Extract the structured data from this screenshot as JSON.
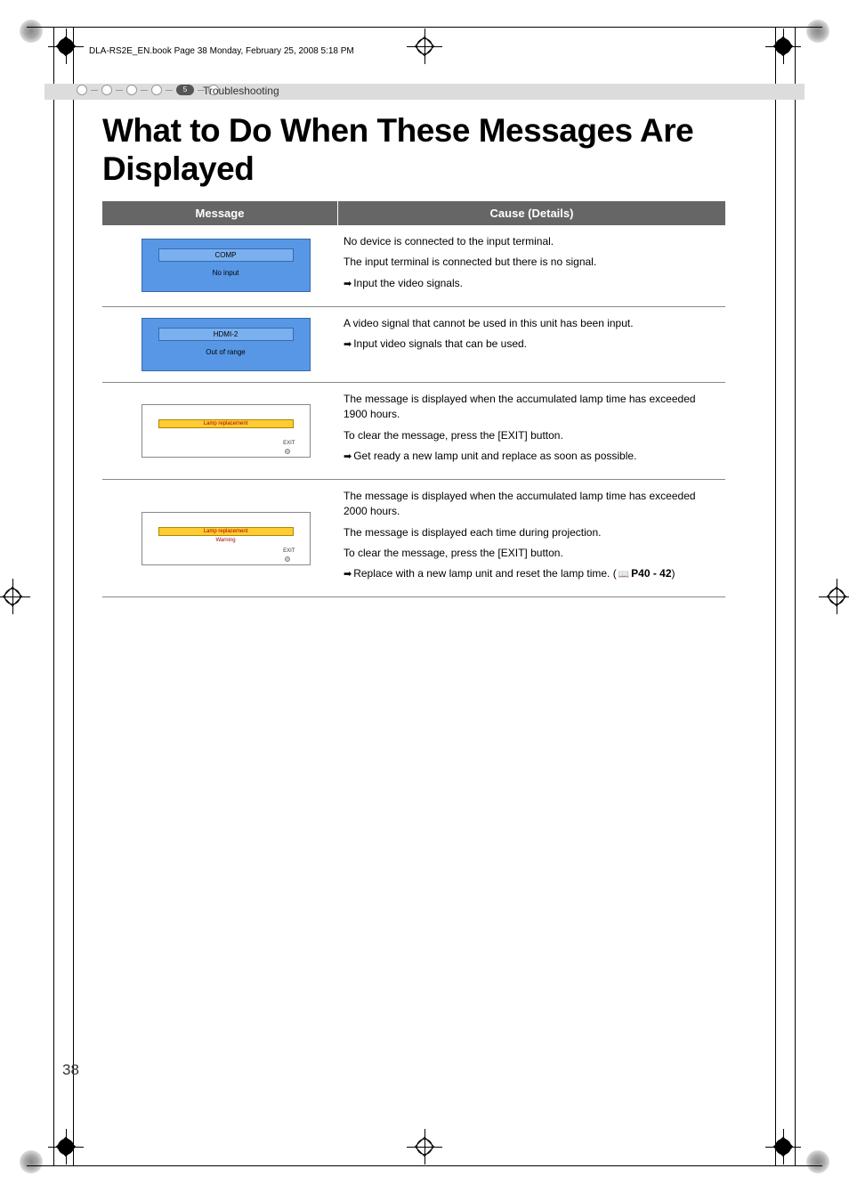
{
  "header": {
    "file_info": "DLA-RS2E_EN.book  Page 38  Monday, February 25, 2008  5:18 PM"
  },
  "section": {
    "number": "5",
    "label": "Troubleshooting"
  },
  "title": "What to Do When These Messages Are Displayed",
  "table": {
    "headers": {
      "message": "Message",
      "cause": "Cause (Details)"
    },
    "rows": [
      {
        "msg": {
          "style": "blue2",
          "line1": "COMP",
          "line2": "No input"
        },
        "cause": {
          "lines": [
            "No device is connected to the input terminal.",
            "The input terminal is connected but there is no signal."
          ],
          "action": "Input the video signals."
        }
      },
      {
        "msg": {
          "style": "blue2",
          "line1": "HDMI-2",
          "line2": "Out of range"
        },
        "cause": {
          "lines": [
            "A video signal that cannot be used in this unit has been input."
          ],
          "action": "Input video signals that can be used."
        }
      },
      {
        "msg": {
          "style": "yellow",
          "bar": "Lamp replacement",
          "warn": "",
          "exit": "EXIT"
        },
        "cause": {
          "lines": [
            "The message is displayed when the accumulated lamp time has exceeded 1900 hours.",
            "To clear the message, press the [EXIT] button."
          ],
          "action": "Get ready a new lamp unit and replace as soon as possible."
        }
      },
      {
        "msg": {
          "style": "yellow",
          "bar": "Lamp replacement",
          "warn": "Warning",
          "exit": "EXIT"
        },
        "cause": {
          "lines": [
            "The message is displayed when the accumulated lamp time has exceeded 2000 hours.",
            "The message is displayed each time during projection.",
            "To clear the message, press the [EXIT] button."
          ],
          "action": "Replace with a new lamp unit and reset the lamp time. (",
          "page_ref": "P40 - 42",
          "action_suffix": ")"
        }
      }
    ]
  },
  "page_number": "38",
  "colors": {
    "blue_box_bg": "#5797e6",
    "blue_light": "#7ab0ef",
    "yellow_bar": "#ffcc33",
    "header_bg": "#666666",
    "band_bg": "#dcdcdc"
  }
}
